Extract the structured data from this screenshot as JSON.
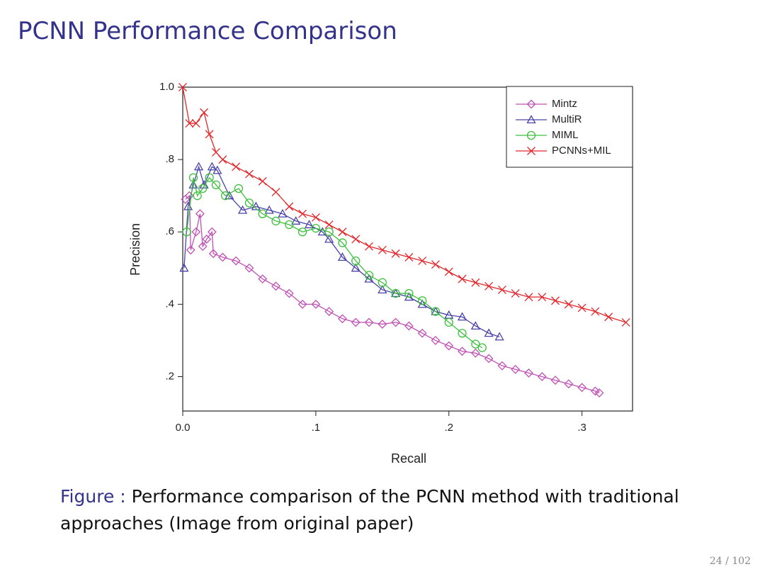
{
  "title": "PCNN Performance Comparison",
  "chart_data": {
    "type": "line",
    "x_label": "Recall",
    "y_label": "Precision",
    "xlim": [
      0,
      0.338
    ],
    "ylim": [
      0.105,
      1.0
    ],
    "xticks": [
      {
        "value": 0,
        "label": "0.0"
      },
      {
        "value": 0.1,
        "label": ".1"
      },
      {
        "value": 0.2,
        "label": ".2"
      },
      {
        "value": 0.3,
        "label": ".3"
      }
    ],
    "yticks": [
      {
        "value": 0.2,
        "label": ".2"
      },
      {
        "value": 0.4,
        "label": ".4"
      },
      {
        "value": 0.6,
        "label": ".6"
      },
      {
        "value": 0.8,
        "label": ".8"
      },
      {
        "value": 1.0,
        "label": "1.0"
      }
    ],
    "legend": "upper right",
    "series": [
      {
        "name": "Mintz",
        "color": "#c050b4",
        "marker": "diamond",
        "x": [
          0.002,
          0.005,
          0.006,
          0.01,
          0.013,
          0.015,
          0.018,
          0.022,
          0.023,
          0.03,
          0.04,
          0.05,
          0.06,
          0.07,
          0.08,
          0.09,
          0.1,
          0.11,
          0.12,
          0.13,
          0.14,
          0.15,
          0.16,
          0.17,
          0.18,
          0.19,
          0.2,
          0.21,
          0.22,
          0.23,
          0.24,
          0.25,
          0.26,
          0.27,
          0.28,
          0.29,
          0.3,
          0.31,
          0.313
        ],
        "values": [
          0.69,
          0.7,
          0.55,
          0.6,
          0.65,
          0.56,
          0.58,
          0.6,
          0.54,
          0.53,
          0.52,
          0.5,
          0.47,
          0.45,
          0.43,
          0.4,
          0.4,
          0.38,
          0.36,
          0.35,
          0.35,
          0.345,
          0.35,
          0.34,
          0.32,
          0.3,
          0.285,
          0.27,
          0.265,
          0.25,
          0.23,
          0.22,
          0.21,
          0.2,
          0.19,
          0.18,
          0.17,
          0.16,
          0.155
        ]
      },
      {
        "name": "MultiR",
        "color": "#4a44a8",
        "marker": "triangle",
        "x": [
          0.001,
          0.004,
          0.008,
          0.012,
          0.016,
          0.022,
          0.026,
          0.035,
          0.045,
          0.055,
          0.065,
          0.075,
          0.085,
          0.095,
          0.105,
          0.11,
          0.12,
          0.13,
          0.14,
          0.15,
          0.16,
          0.17,
          0.18,
          0.19,
          0.2,
          0.21,
          0.22,
          0.23,
          0.238
        ],
        "values": [
          0.5,
          0.67,
          0.73,
          0.78,
          0.73,
          0.78,
          0.77,
          0.7,
          0.66,
          0.67,
          0.66,
          0.65,
          0.63,
          0.62,
          0.6,
          0.58,
          0.53,
          0.5,
          0.47,
          0.44,
          0.43,
          0.42,
          0.4,
          0.38,
          0.37,
          0.365,
          0.34,
          0.32,
          0.31
        ]
      },
      {
        "name": "MIML",
        "color": "#3cc03c",
        "marker": "circle",
        "x": [
          0.003,
          0.008,
          0.011,
          0.015,
          0.02,
          0.025,
          0.032,
          0.042,
          0.05,
          0.06,
          0.07,
          0.08,
          0.09,
          0.1,
          0.11,
          0.12,
          0.13,
          0.14,
          0.15,
          0.16,
          0.17,
          0.18,
          0.19,
          0.2,
          0.21,
          0.22,
          0.225
        ],
        "values": [
          0.6,
          0.75,
          0.7,
          0.72,
          0.75,
          0.73,
          0.7,
          0.72,
          0.68,
          0.65,
          0.63,
          0.62,
          0.6,
          0.61,
          0.6,
          0.57,
          0.52,
          0.48,
          0.46,
          0.43,
          0.43,
          0.41,
          0.38,
          0.35,
          0.32,
          0.29,
          0.28
        ]
      },
      {
        "name": "PCNNs+MIL",
        "color": "#e2262a",
        "marker": "cross",
        "x": [
          0,
          0.005,
          0.01,
          0.016,
          0.02,
          0.025,
          0.03,
          0.04,
          0.05,
          0.06,
          0.07,
          0.08,
          0.09,
          0.1,
          0.11,
          0.12,
          0.13,
          0.14,
          0.15,
          0.16,
          0.17,
          0.18,
          0.19,
          0.2,
          0.21,
          0.22,
          0.23,
          0.24,
          0.25,
          0.26,
          0.27,
          0.28,
          0.29,
          0.3,
          0.31,
          0.32,
          0.333
        ],
        "values": [
          1.0,
          0.9,
          0.9,
          0.93,
          0.87,
          0.82,
          0.8,
          0.78,
          0.76,
          0.74,
          0.71,
          0.67,
          0.65,
          0.64,
          0.62,
          0.6,
          0.58,
          0.56,
          0.55,
          0.54,
          0.53,
          0.52,
          0.51,
          0.49,
          0.47,
          0.46,
          0.45,
          0.44,
          0.43,
          0.42,
          0.42,
          0.41,
          0.4,
          0.39,
          0.38,
          0.365,
          0.35
        ]
      }
    ]
  },
  "caption": {
    "label": "Figure :",
    "text": "Performance comparison of the PCNN method with traditional approaches (Image from original paper)"
  },
  "page_number": "24 / 102"
}
